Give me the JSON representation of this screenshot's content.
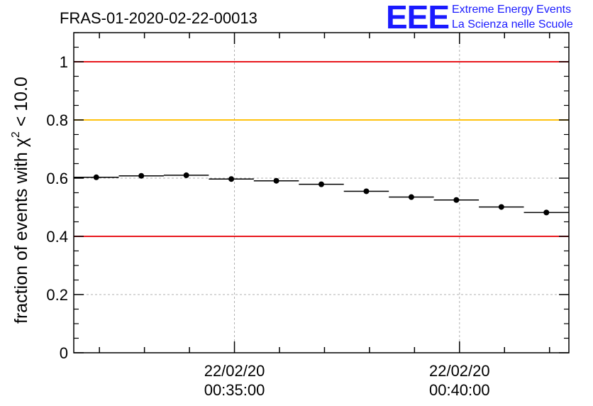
{
  "chart_data": {
    "type": "scatter",
    "title": "FRAS-01-2020-02-22-00013",
    "ylabel_prefix": "fraction of events with χ",
    "ylabel_sup": "2",
    "ylabel_suffix": " < 10.0",
    "xlabel": "",
    "ylim": [
      0,
      1.1
    ],
    "yticks": [
      {
        "value": 0,
        "label": "0"
      },
      {
        "value": 0.2,
        "label": "0.2"
      },
      {
        "value": 0.4,
        "label": "0.4"
      },
      {
        "value": 0.6,
        "label": "0.6"
      },
      {
        "value": 0.8,
        "label": "0.8"
      },
      {
        "value": 1,
        "label": "1"
      }
    ],
    "xlim_minutes": [
      31.43,
      42.43
    ],
    "xticks": [
      {
        "minute": 35,
        "date": "22/02/20",
        "time": "00:35:00"
      },
      {
        "minute": 40,
        "date": "22/02/20",
        "time": "00:40:00"
      }
    ],
    "bin_width_minutes": 1,
    "points": [
      {
        "minute": 31.93,
        "y": 0.603
      },
      {
        "minute": 32.93,
        "y": 0.608
      },
      {
        "minute": 33.93,
        "y": 0.61
      },
      {
        "minute": 34.93,
        "y": 0.597
      },
      {
        "minute": 35.93,
        "y": 0.591
      },
      {
        "minute": 36.93,
        "y": 0.579
      },
      {
        "minute": 37.93,
        "y": 0.555
      },
      {
        "minute": 38.93,
        "y": 0.535
      },
      {
        "minute": 39.93,
        "y": 0.525
      },
      {
        "minute": 40.93,
        "y": 0.501
      },
      {
        "minute": 41.93,
        "y": 0.482
      }
    ],
    "reference_lines": [
      {
        "y": 1.0,
        "color": "#e8181e"
      },
      {
        "y": 0.8,
        "color": "#ffc20e"
      },
      {
        "y": 0.4,
        "color": "#e8181e"
      }
    ],
    "grid": true
  },
  "logo": {
    "mark": "EEE",
    "line1": "Extreme Energy Events",
    "line2": "La Scienza nelle Scuole",
    "color": "#1a1aff"
  }
}
